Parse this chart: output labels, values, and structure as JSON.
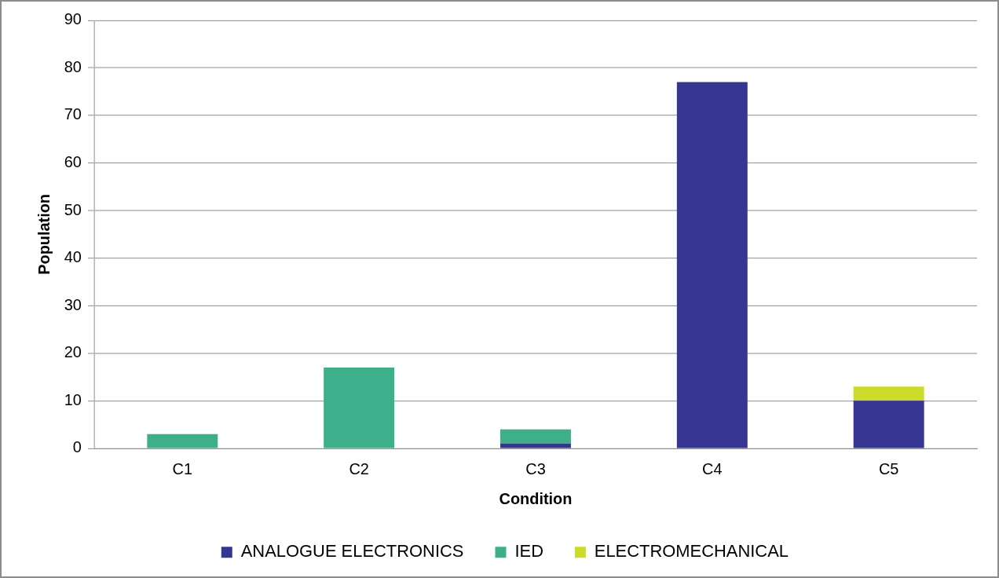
{
  "chart_data": {
    "type": "bar",
    "stacked": true,
    "xlabel": "Condition",
    "ylabel": "Population",
    "categories": [
      "C1",
      "C2",
      "C3",
      "C4",
      "C5"
    ],
    "series": [
      {
        "name": "ANALOGUE ELECTRONICS",
        "color": "#363690",
        "values": [
          0,
          0,
          1,
          77,
          10
        ]
      },
      {
        "name": "IED",
        "color": "#3daf8b",
        "values": [
          3,
          17,
          3,
          0,
          0
        ]
      },
      {
        "name": "ELECTROMECHANICAL",
        "color": "#ccdb2a",
        "values": [
          0,
          0,
          0,
          0,
          3
        ]
      }
    ],
    "ylim": [
      0,
      90
    ],
    "yticks": [
      0,
      10,
      20,
      30,
      40,
      50,
      60,
      70,
      80,
      90
    ],
    "grid": "y",
    "legend": "bottom"
  }
}
